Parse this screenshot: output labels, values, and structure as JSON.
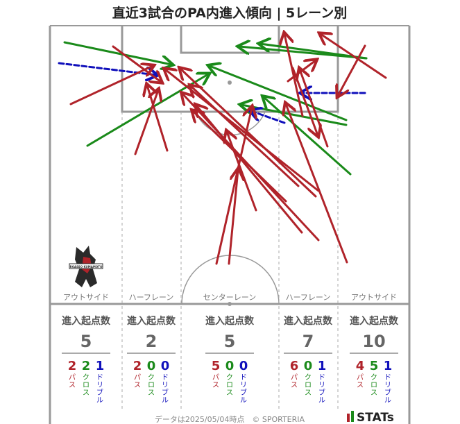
{
  "title": "直近3試合のPA内進入傾向 | 5レーン別",
  "lane_labels": [
    "アウトサイド",
    "ハーフレーン",
    "センターレーン",
    "ハーフレーン",
    "アウトサイド"
  ],
  "stat_header": "進入起点数",
  "type_labels": {
    "pass": "パス",
    "cross": "クロス",
    "dribble": "ドリブル"
  },
  "footer": "データは2025/05/04時点　© SPORTERIA",
  "brand": "STATs",
  "logo_text": "ROASSO KUMAMOTO",
  "colors": {
    "pass": "#b0232a",
    "cross": "#1a8a1a",
    "dribble": "#1010bb",
    "pitch_line": "#999999"
  },
  "chart_data": {
    "type": "table",
    "lanes": [
      {
        "lane": "アウトサイド",
        "total": 5,
        "pass": 2,
        "cross": 2,
        "dribble": 1
      },
      {
        "lane": "ハーフレーン",
        "total": 2,
        "pass": 2,
        "cross": 0,
        "dribble": 0
      },
      {
        "lane": "センターレーン",
        "total": 5,
        "pass": 5,
        "cross": 0,
        "dribble": 0
      },
      {
        "lane": "ハーフレーン",
        "total": 7,
        "pass": 6,
        "cross": 0,
        "dribble": 1
      },
      {
        "lane": "アウトサイド",
        "total": 10,
        "pass": 4,
        "cross": 5,
        "dribble": 1
      }
    ]
  }
}
